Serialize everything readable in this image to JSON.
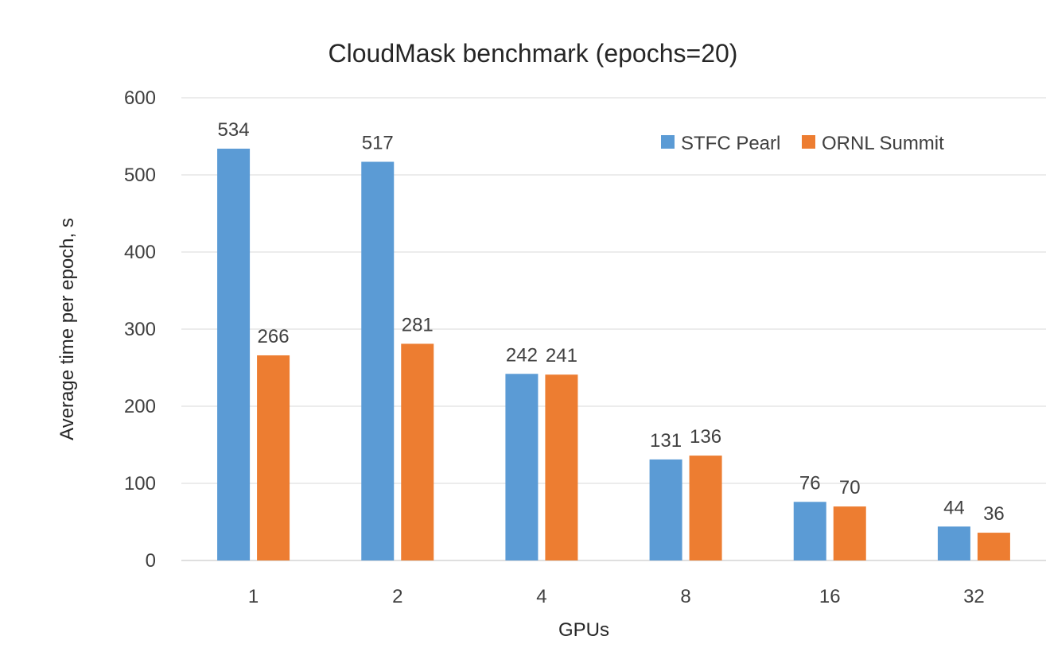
{
  "chart_data": {
    "type": "bar",
    "title": "CloudMask benchmark (epochs=20)",
    "xlabel": "GPUs",
    "ylabel": "Average time per epoch, s",
    "categories": [
      "1",
      "2",
      "4",
      "8",
      "16",
      "32"
    ],
    "series": [
      {
        "name": "STFC Pearl",
        "color": "#5b9bd5",
        "values": [
          534,
          517,
          242,
          131,
          76,
          44
        ]
      },
      {
        "name": "ORNL Summit",
        "color": "#ed7d31",
        "values": [
          266,
          281,
          241,
          136,
          70,
          36
        ]
      }
    ],
    "ylim": [
      0,
      600
    ],
    "yticks": [
      0,
      100,
      200,
      300,
      400,
      500,
      600
    ],
    "grid": true,
    "legend_position": "top-right",
    "data_labels": true
  }
}
